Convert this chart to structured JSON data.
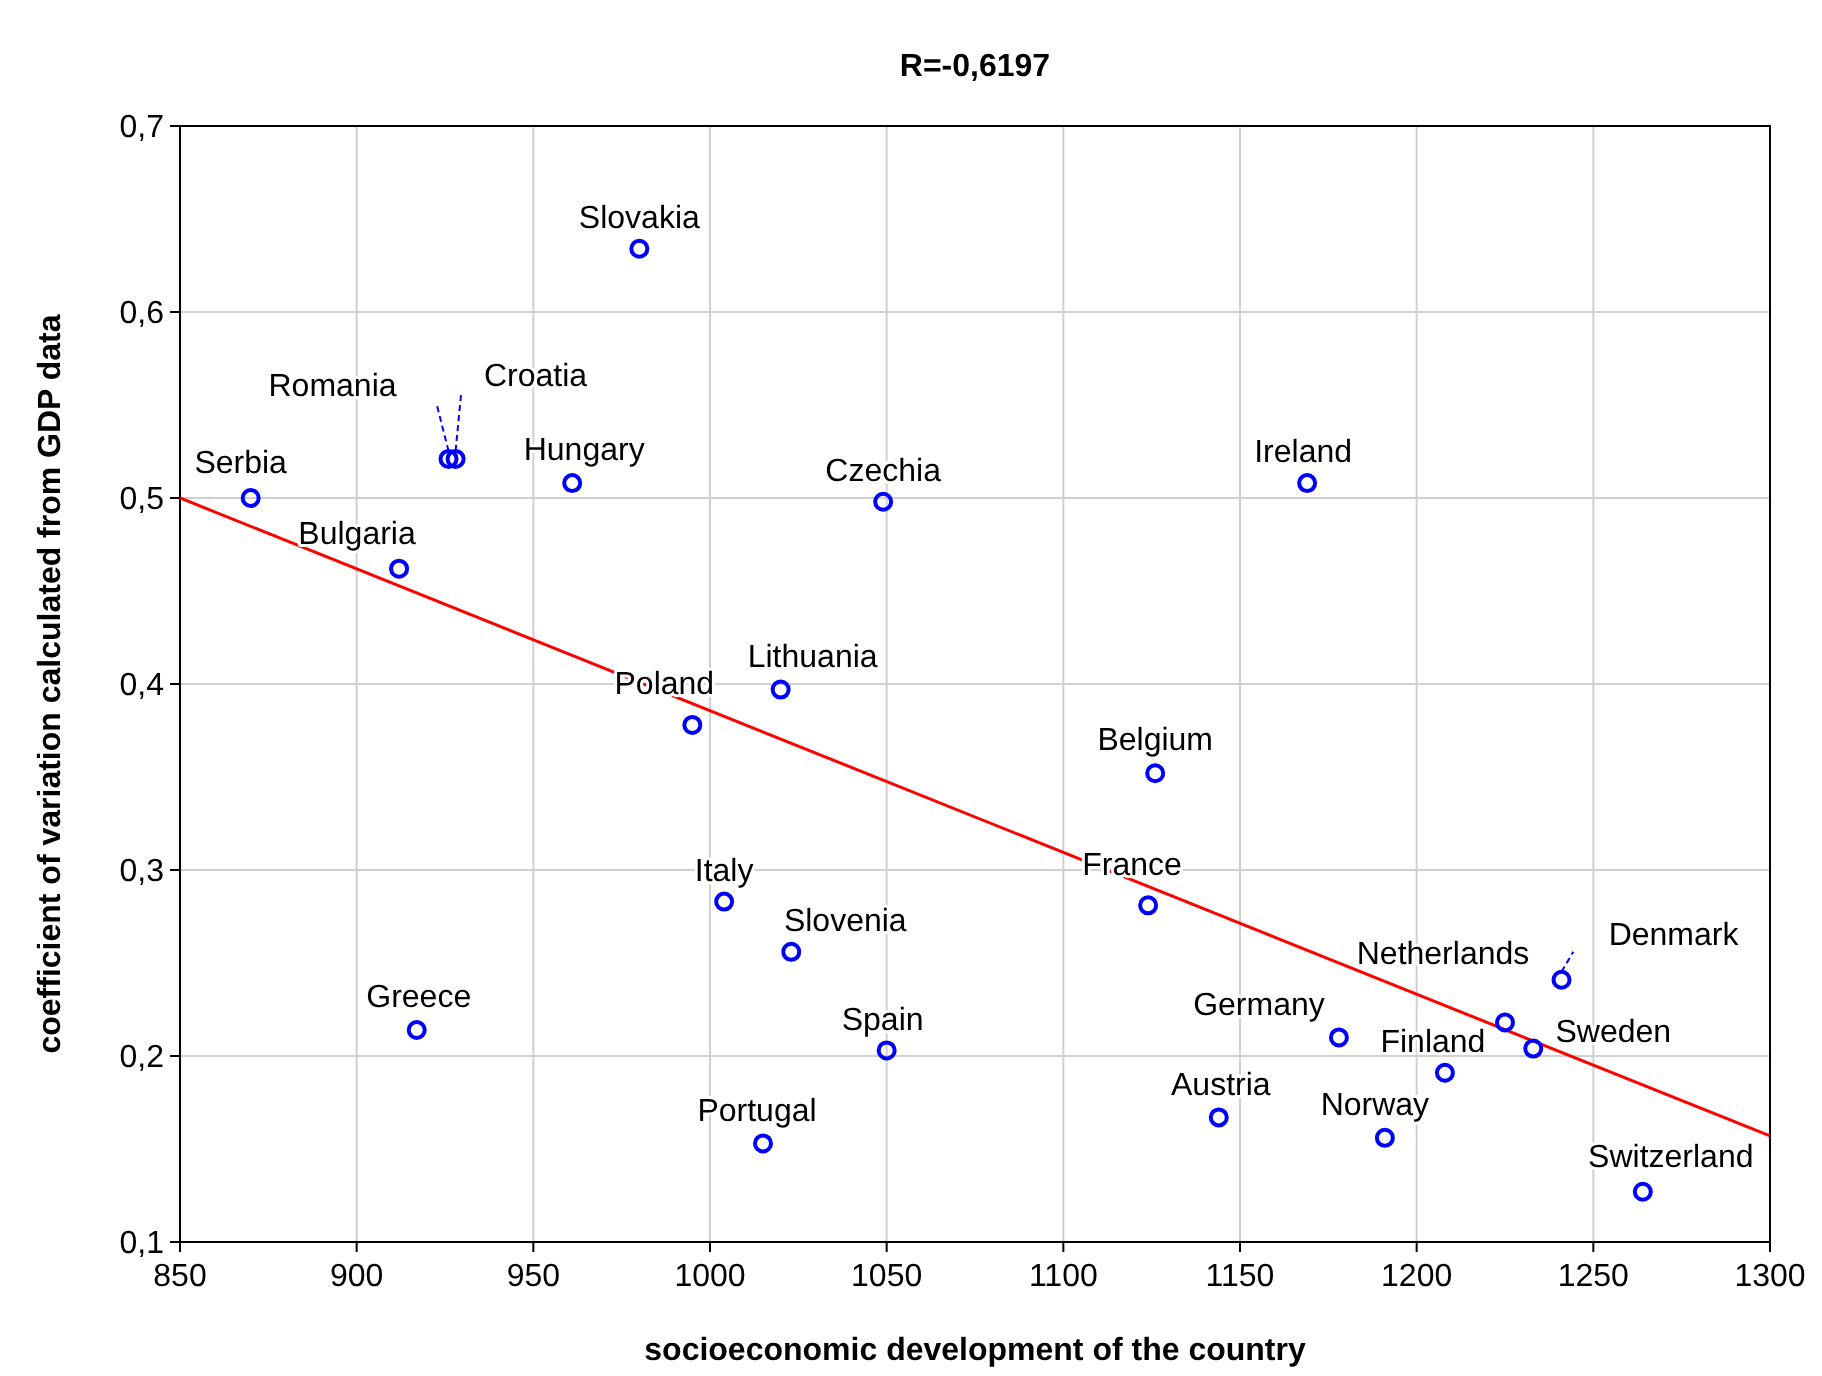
{
  "chart_data": {
    "type": "scatter",
    "title": "R=-0,6197",
    "xlabel": "socioeconomic development of the country",
    "ylabel": "coefficient of variation calculated from GDP data",
    "xlim": [
      850,
      1300
    ],
    "xticks": [
      850,
      900,
      950,
      1000,
      1050,
      1100,
      1150,
      1200,
      1250,
      1300
    ],
    "ylim": [
      0.1,
      0.7
    ],
    "yticks": [
      {
        "value": 0.1,
        "label": "0,1"
      },
      {
        "value": 0.2,
        "label": "0,2"
      },
      {
        "value": 0.3,
        "label": "0,3"
      },
      {
        "value": 0.4,
        "label": "0,4"
      },
      {
        "value": 0.5,
        "label": "0,5"
      },
      {
        "value": 0.6,
        "label": "0,6"
      },
      {
        "value": 0.7,
        "label": "0,7"
      }
    ],
    "grid": true,
    "series": [
      {
        "color": "#0000ff",
        "marker": "circle",
        "x": [
          870,
          912,
          926,
          928,
          917,
          961,
          980,
          995,
          1020,
          1004,
          1023,
          1015,
          1050,
          1049,
          1169,
          1126,
          1124,
          1144,
          1178,
          1191,
          1208,
          1225,
          1233,
          1241,
          1264
        ],
        "values": [
          0.5,
          0.462,
          0.521,
          0.521,
          0.214,
          0.508,
          0.634,
          0.378,
          0.397,
          0.283,
          0.256,
          0.153,
          0.203,
          0.498,
          0.508,
          0.352,
          0.281,
          0.167,
          0.21,
          0.156,
          0.191,
          0.218,
          0.204,
          0.241,
          0.127
        ]
      },
      {
        "type": "line",
        "color": "#ff0000",
        "marker": "none",
        "line_style": "solid",
        "x": [
          850,
          1300
        ],
        "values": [
          0.5,
          0.157
        ]
      }
    ],
    "annotations": [
      {
        "text": "Serbia",
        "x": 870,
        "y": 0.5
      },
      {
        "text": "Bulgaria",
        "x": 912,
        "y": 0.462
      },
      {
        "text": "Romania",
        "x": 926,
        "y": 0.521
      },
      {
        "text": "Croatia",
        "x": 928,
        "y": 0.521
      },
      {
        "text": "Greece",
        "x": 917,
        "y": 0.214
      },
      {
        "text": "Hungary",
        "x": 961,
        "y": 0.508
      },
      {
        "text": "Slovakia",
        "x": 980,
        "y": 0.634
      },
      {
        "text": "Poland",
        "x": 995,
        "y": 0.378
      },
      {
        "text": "Lithuania",
        "x": 1020,
        "y": 0.397
      },
      {
        "text": "Italy",
        "x": 1004,
        "y": 0.283
      },
      {
        "text": "Slovenia",
        "x": 1023,
        "y": 0.256
      },
      {
        "text": "Portugal",
        "x": 1015,
        "y": 0.153
      },
      {
        "text": "Spain",
        "x": 1050,
        "y": 0.203
      },
      {
        "text": "Czechia",
        "x": 1049,
        "y": 0.498
      },
      {
        "text": "Ireland",
        "x": 1169,
        "y": 0.508
      },
      {
        "text": "Belgium",
        "x": 1126,
        "y": 0.352
      },
      {
        "text": "France",
        "x": 1124,
        "y": 0.281
      },
      {
        "text": "Austria",
        "x": 1144,
        "y": 0.167
      },
      {
        "text": "Germany",
        "x": 1178,
        "y": 0.21
      },
      {
        "text": "Norway",
        "x": 1191,
        "y": 0.156
      },
      {
        "text": "Finland",
        "x": 1208,
        "y": 0.191
      },
      {
        "text": "Netherlands",
        "x": 1225,
        "y": 0.218
      },
      {
        "text": "Sweden",
        "x": 1233,
        "y": 0.204
      },
      {
        "text": "Denmark",
        "x": 1241,
        "y": 0.241
      },
      {
        "text": "Switzerland",
        "x": 1264,
        "y": 0.127
      }
    ]
  }
}
